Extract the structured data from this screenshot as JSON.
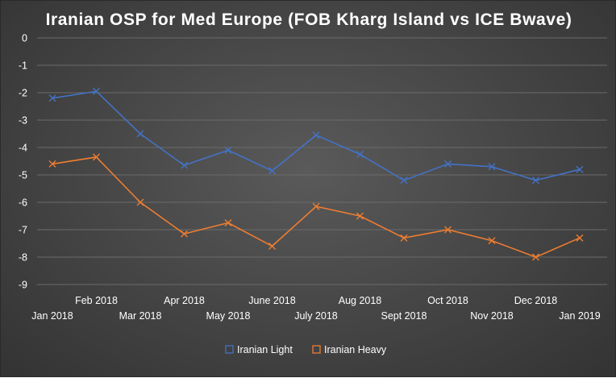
{
  "chart_data": {
    "type": "line",
    "title": "Iranian OSP for Med Europe (FOB Kharg Island vs ICE Bwave)",
    "categories": [
      "Jan 2018",
      "Feb 2018",
      "Mar 2018",
      "Apr 2018",
      "May 2018",
      "June 2018",
      "July 2018",
      "Aug 2018",
      "Sept 2018",
      "Oct 2018",
      "Nov 2018",
      "Dec 2018",
      "Jan 2019"
    ],
    "series": [
      {
        "name": "Iranian Light",
        "color": "#4472C4",
        "marker": "x",
        "values": [
          -2.2,
          -1.95,
          -3.5,
          -4.65,
          -4.1,
          -4.85,
          -3.55,
          -4.25,
          -5.2,
          -4.6,
          -4.7,
          -5.2,
          -4.8
        ]
      },
      {
        "name": "Iranian Heavy",
        "color": "#ED7D31",
        "marker": "x",
        "values": [
          -4.6,
          -4.35,
          -6.0,
          -7.15,
          -6.75,
          -7.6,
          -6.15,
          -6.5,
          -7.3,
          -7.0,
          -7.4,
          -8.0,
          -7.3
        ]
      }
    ],
    "ylim": [
      -9,
      0
    ],
    "yticks": [
      0,
      -1,
      -2,
      -3,
      -4,
      -5,
      -6,
      -7,
      -8,
      -9
    ],
    "xlabel": "",
    "ylabel": "",
    "grid": true,
    "legend_position": "bottom",
    "gridline_color": "#6b6b6b",
    "text_color": "#ffffff"
  }
}
